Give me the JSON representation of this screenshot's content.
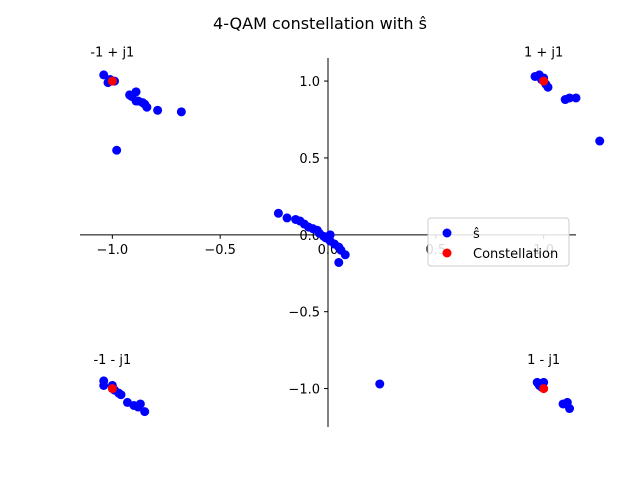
{
  "chart_data": {
    "type": "scatter",
    "title": "4-QAM constellation with ŝ",
    "xlabel": "",
    "ylabel": "",
    "xlim": [
      -1.15,
      1.15
    ],
    "ylim": [
      -1.25,
      1.15
    ],
    "xticks": [
      -1.0,
      -0.5,
      0.0,
      0.5,
      1.0
    ],
    "xtick_labels": [
      "−1.0",
      "−0.5",
      "0.0",
      "0.5",
      "1.0"
    ],
    "yticks": [
      -1.0,
      -0.5,
      0.0,
      0.5,
      1.0
    ],
    "ytick_labels": [
      "−1.0",
      "−0.5",
      "0.0",
      "0.5",
      "1.0"
    ],
    "spines": "centered",
    "grid": false,
    "legend_position": "center-right",
    "annotations": [
      {
        "text": "-1 + j1",
        "x": -1.0,
        "y": 1.2
      },
      {
        "text": "1 + j1",
        "x": 1.0,
        "y": 1.2
      },
      {
        "text": "-1 - j1",
        "x": -1.0,
        "y": -0.8
      },
      {
        "text": "1 - j1",
        "x": 1.0,
        "y": -0.8
      }
    ],
    "series": [
      {
        "name": "ŝ",
        "color": "#0000ff",
        "points": [
          [
            -1.04,
            1.04
          ],
          [
            -1.02,
            0.99
          ],
          [
            -1.01,
            1.01
          ],
          [
            -0.99,
            1.0
          ],
          [
            -0.92,
            0.91
          ],
          [
            -0.91,
            0.9
          ],
          [
            -0.89,
            0.87
          ],
          [
            -0.89,
            0.93
          ],
          [
            -0.88,
            0.87
          ],
          [
            -0.86,
            0.86
          ],
          [
            -0.85,
            0.85
          ],
          [
            -0.84,
            0.83
          ],
          [
            -0.79,
            0.81
          ],
          [
            -0.68,
            0.8
          ],
          [
            -0.98,
            0.55
          ],
          [
            0.96,
            1.03
          ],
          [
            0.98,
            1.04
          ],
          [
            0.99,
            1.01
          ],
          [
            1.0,
            1.02
          ],
          [
            1.01,
            0.98
          ],
          [
            1.02,
            0.96
          ],
          [
            1.1,
            0.88
          ],
          [
            1.12,
            0.89
          ],
          [
            1.15,
            0.89
          ],
          [
            1.26,
            0.61
          ],
          [
            -1.04,
            -0.95
          ],
          [
            -1.04,
            -0.98
          ],
          [
            -1.0,
            -0.98
          ],
          [
            -0.99,
            -1.01
          ],
          [
            -0.97,
            -1.03
          ],
          [
            -0.96,
            -1.04
          ],
          [
            -0.93,
            -1.09
          ],
          [
            -0.9,
            -1.11
          ],
          [
            -0.88,
            -1.12
          ],
          [
            -0.87,
            -1.1
          ],
          [
            -0.85,
            -1.15
          ],
          [
            0.97,
            -0.96
          ],
          [
            0.98,
            -0.98
          ],
          [
            0.99,
            -0.97
          ],
          [
            1.0,
            -0.96
          ],
          [
            0.99,
            -0.99
          ],
          [
            1.09,
            -1.1
          ],
          [
            1.11,
            -1.09
          ],
          [
            1.12,
            -1.13
          ],
          [
            0.24,
            -0.97
          ],
          [
            -0.23,
            0.14
          ],
          [
            -0.19,
            0.11
          ],
          [
            -0.15,
            0.1
          ],
          [
            -0.13,
            0.09
          ],
          [
            -0.11,
            0.07
          ],
          [
            -0.09,
            0.05
          ],
          [
            -0.07,
            0.04
          ],
          [
            -0.05,
            0.03
          ],
          [
            -0.04,
            0.01
          ],
          [
            -0.02,
            -0.01
          ],
          [
            -0.01,
            -0.02
          ],
          [
            0.01,
            -0.04
          ],
          [
            0.03,
            -0.06
          ],
          [
            0.05,
            -0.08
          ],
          [
            0.06,
            -0.1
          ],
          [
            0.01,
            0.0
          ],
          [
            0.05,
            -0.18
          ],
          [
            0.08,
            -0.13
          ]
        ]
      },
      {
        "name": "Constellation",
        "color": "#ff0000",
        "points": [
          [
            -1,
            1
          ],
          [
            1,
            1
          ],
          [
            -1,
            -1
          ],
          [
            1,
            -1
          ]
        ]
      }
    ]
  }
}
